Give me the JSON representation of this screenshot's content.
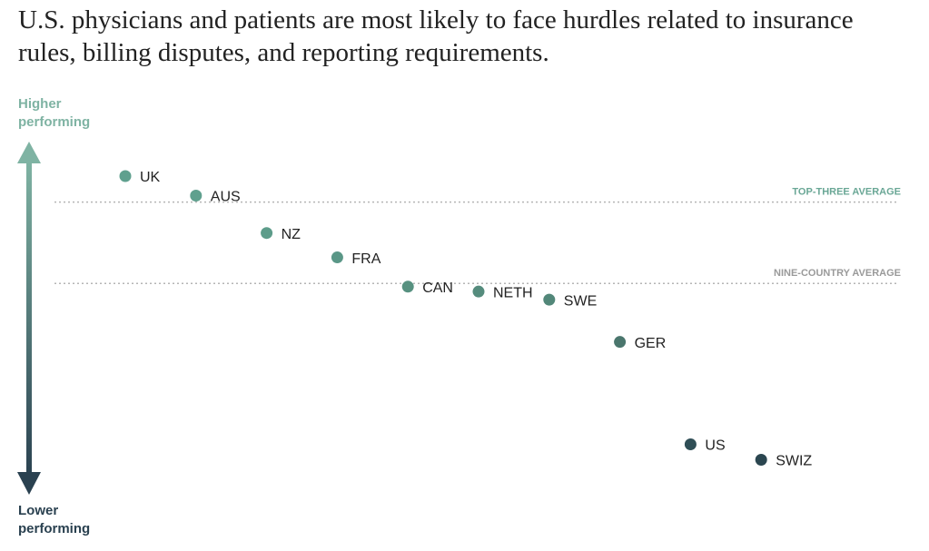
{
  "chart_data": {
    "type": "dot",
    "title": "U.S. physicians and patients are most likely to face hurdles related to insurance rules, billing disputes, and reporting requirements.",
    "y_top_label": "Higher performing",
    "y_bottom_label": "Lower performing",
    "categories": [
      "UK",
      "AUS",
      "NZ",
      "FRA",
      "CAN",
      "NETH",
      "SWE",
      "GER",
      "US",
      "SWIZ"
    ],
    "values": [
      1.32,
      1.08,
      0.62,
      0.32,
      -0.04,
      -0.1,
      -0.2,
      -0.72,
      -1.98,
      -2.17
    ],
    "colors": [
      "#5fa08e",
      "#5fa08e",
      "#5d9c8a",
      "#5a9787",
      "#579180",
      "#558c7d",
      "#528779",
      "#4a766d",
      "#2f4e56",
      "#2b4650"
    ],
    "ylim": [
      -2.6,
      1.7
    ],
    "reference_lines": [
      {
        "label": "TOP-THREE AVERAGE",
        "value": 1.0,
        "color": "#6aa796"
      },
      {
        "label": "NINE-COUNTRY AVERAGE",
        "value": 0.0,
        "color": "#9a9a9a"
      }
    ],
    "arrow_colors": [
      "#7fb3a3",
      "#2a4150"
    ]
  }
}
